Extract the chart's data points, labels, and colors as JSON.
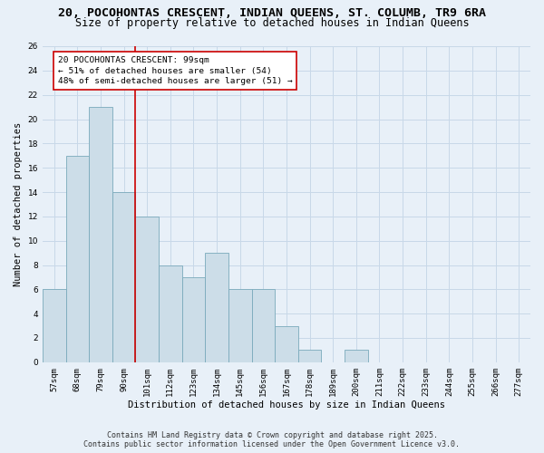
{
  "title_line1": "20, POCOHONTAS CRESCENT, INDIAN QUEENS, ST. COLUMB, TR9 6RA",
  "title_line2": "Size of property relative to detached houses in Indian Queens",
  "xlabel": "Distribution of detached houses by size in Indian Queens",
  "ylabel": "Number of detached properties",
  "bin_labels": [
    "57sqm",
    "68sqm",
    "79sqm",
    "90sqm",
    "101sqm",
    "112sqm",
    "123sqm",
    "134sqm",
    "145sqm",
    "156sqm",
    "167sqm",
    "178sqm",
    "189sqm",
    "200sqm",
    "211sqm",
    "222sqm",
    "233sqm",
    "244sqm",
    "255sqm",
    "266sqm",
    "277sqm"
  ],
  "bar_values": [
    6,
    17,
    21,
    14,
    12,
    8,
    7,
    9,
    6,
    6,
    3,
    1,
    0,
    1,
    0,
    0,
    0,
    0,
    0,
    0,
    0
  ],
  "bar_color": "#ccdde8",
  "bar_edge_color": "#7aaabb",
  "grid_color": "#c8d8e8",
  "background_color": "#e8f0f8",
  "vline_color": "#cc0000",
  "annotation_text": "20 POCOHONTAS CRESCENT: 99sqm\n← 51% of detached houses are smaller (54)\n48% of semi-detached houses are larger (51) →",
  "annotation_box_color": "#ffffff",
  "annotation_box_edge": "#cc0000",
  "ylim": [
    0,
    26
  ],
  "yticks": [
    0,
    2,
    4,
    6,
    8,
    10,
    12,
    14,
    16,
    18,
    20,
    22,
    24,
    26
  ],
  "footnote": "Contains HM Land Registry data © Crown copyright and database right 2025.\nContains public sector information licensed under the Open Government Licence v3.0.",
  "title_fontsize": 9.5,
  "subtitle_fontsize": 8.5,
  "axis_label_fontsize": 7.5,
  "tick_fontsize": 6.5,
  "annotation_fontsize": 6.8,
  "footnote_fontsize": 6.0,
  "ylabel_fontsize": 7.5
}
